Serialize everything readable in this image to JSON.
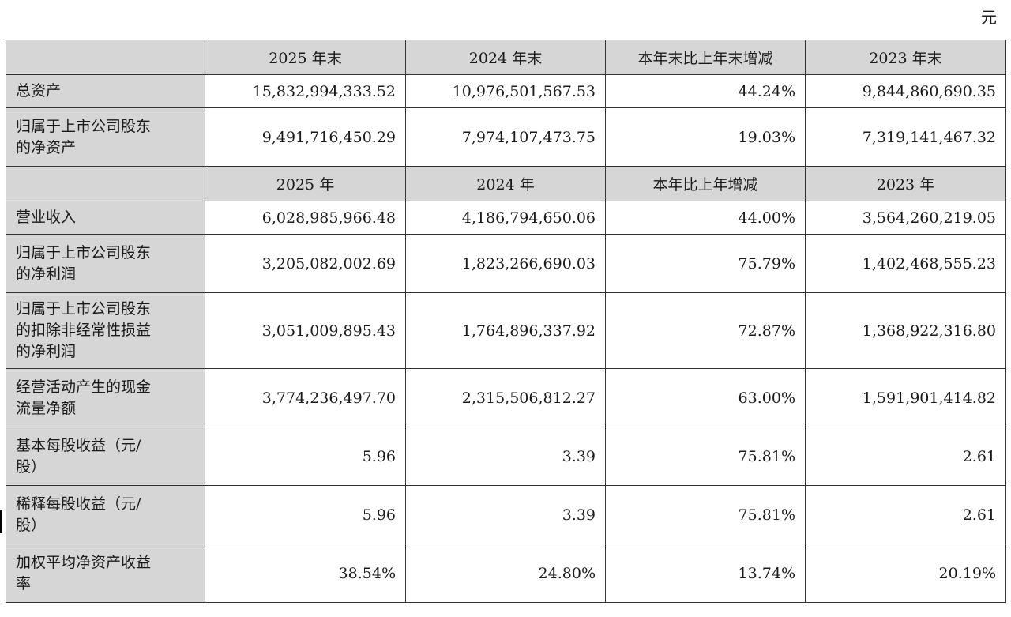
{
  "unit": "元",
  "header_end": [
    "",
    "2025 年末",
    "2024 年末",
    "本年末比上年末增减",
    "2023 年末"
  ],
  "header_year": [
    "",
    "2025 年",
    "2024 年",
    "本年比上年增减",
    "2023 年"
  ],
  "rows_end": [
    {
      "label": [
        "总资产"
      ],
      "v2025": "15,832,994,333.52",
      "v2024": "10,976,501,567.53",
      "change": "44.24%",
      "v2023": "9,844,860,690.35"
    },
    {
      "label": [
        "归属于上市公司股东",
        "的净资产"
      ],
      "v2025": "9,491,716,450.29",
      "v2024": "7,974,107,473.75",
      "change": "19.03%",
      "v2023": "7,319,141,467.32"
    }
  ],
  "rows_year": [
    {
      "label": [
        "营业收入"
      ],
      "v2025": "6,028,985,966.48",
      "v2024": "4,186,794,650.06",
      "change": "44.00%",
      "v2023": "3,564,260,219.05"
    },
    {
      "label": [
        "归属于上市公司股东",
        "的净利润"
      ],
      "v2025": "3,205,082,002.69",
      "v2024": "1,823,266,690.03",
      "change": "75.79%",
      "v2023": "1,402,468,555.23"
    },
    {
      "label": [
        "归属于上市公司股东",
        "的扣除非经常性损益",
        "的净利润"
      ],
      "v2025": "3,051,009,895.43",
      "v2024": "1,764,896,337.92",
      "change": "72.87%",
      "v2023": "1,368,922,316.80"
    },
    {
      "label": [
        "经营活动产生的现金",
        "流量净额"
      ],
      "v2025": "3,774,236,497.70",
      "v2024": "2,315,506,812.27",
      "change": "63.00%",
      "v2023": "1,591,901,414.82"
    },
    {
      "label": [
        "基本每股收益（元/",
        "股）"
      ],
      "v2025": "5.96",
      "v2024": "3.39",
      "change": "75.81%",
      "v2023": "2.61"
    },
    {
      "label": [
        "稀释每股收益（元/",
        "股）"
      ],
      "v2025": "5.96",
      "v2024": "3.39",
      "change": "75.81%",
      "v2023": "2.61"
    },
    {
      "label": [
        "加权平均净资产收益",
        "率"
      ],
      "v2025": "38.54%",
      "v2024": "24.80%",
      "change": "13.74%",
      "v2023": "20.19%"
    }
  ]
}
